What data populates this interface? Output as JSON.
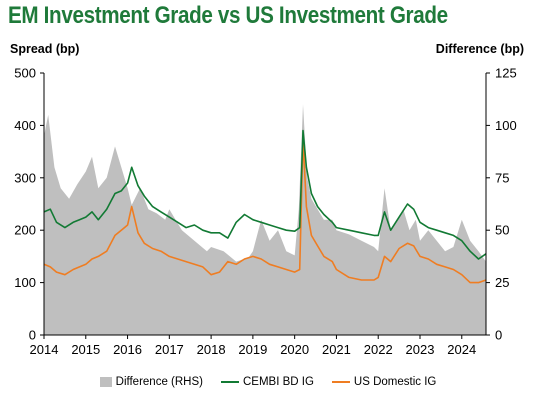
{
  "title": "EM Investment Grade vs US Investment Grade",
  "colors": {
    "title": "#1f7a3a",
    "difference": "#bfbfbf",
    "cembi": "#127a34",
    "us_domestic": "#ef7d22"
  },
  "chart_data": {
    "type": "line",
    "title": "EM Investment Grade vs US Investment Grade",
    "ylabel": "Spread (bp)",
    "ylabel_right": "Difference (bp)",
    "ylim": [
      0,
      500
    ],
    "ylim_right": [
      0,
      125
    ],
    "yticks": [
      "0",
      "100",
      "200",
      "300",
      "400",
      "500"
    ],
    "yticks_right": [
      "0",
      "25",
      "50",
      "75",
      "100",
      "125"
    ],
    "xlim": [
      2014,
      2024.58
    ],
    "xticks": [
      "2014",
      "2015",
      "2016",
      "2017",
      "2018",
      "2019",
      "2020",
      "2021",
      "2022",
      "2023",
      "2024"
    ],
    "grid": false,
    "legend_position": "bottom",
    "series": [
      {
        "name": "Difference (RHS)",
        "type": "area",
        "axis": "right",
        "x": [
          2014,
          2014.1,
          2014.25,
          2014.4,
          2014.6,
          2014.8,
          2015,
          2015.15,
          2015.3,
          2015.5,
          2015.7,
          2015.85,
          2016,
          2016.1,
          2016.3,
          2016.5,
          2016.7,
          2016.9,
          2017,
          2017.3,
          2017.6,
          2017.9,
          2018,
          2018.3,
          2018.6,
          2018.9,
          2019,
          2019.2,
          2019.4,
          2019.6,
          2019.8,
          2020,
          2020.1,
          2020.2,
          2020.3,
          2020.4,
          2020.55,
          2020.7,
          2020.9,
          2021,
          2021.3,
          2021.6,
          2021.9,
          2022,
          2022.15,
          2022.3,
          2022.45,
          2022.6,
          2022.75,
          2022.9,
          2023,
          2023.2,
          2023.4,
          2023.6,
          2023.8,
          2024,
          2024.2,
          2024.4,
          2024.58
        ],
        "values": [
          95,
          105,
          80,
          70,
          65,
          72,
          78,
          85,
          70,
          75,
          90,
          80,
          70,
          62,
          70,
          60,
          58,
          55,
          60,
          50,
          45,
          40,
          42,
          40,
          35,
          37,
          40,
          55,
          45,
          50,
          40,
          38,
          60,
          110,
          75,
          65,
          60,
          55,
          55,
          50,
          48,
          45,
          42,
          40,
          70,
          50,
          55,
          60,
          50,
          55,
          45,
          50,
          45,
          40,
          42,
          55,
          45,
          40,
          35
        ]
      },
      {
        "name": "CEMBI BD IG",
        "type": "line",
        "axis": "left",
        "x": [
          2014,
          2014.15,
          2014.3,
          2014.5,
          2014.7,
          2014.85,
          2015,
          2015.15,
          2015.3,
          2015.5,
          2015.7,
          2015.85,
          2016,
          2016.1,
          2016.25,
          2016.4,
          2016.6,
          2016.8,
          2017,
          2017.2,
          2017.4,
          2017.6,
          2017.8,
          2018,
          2018.2,
          2018.4,
          2018.6,
          2018.8,
          2019,
          2019.2,
          2019.4,
          2019.6,
          2019.8,
          2020,
          2020.12,
          2020.2,
          2020.28,
          2020.4,
          2020.55,
          2020.7,
          2020.9,
          2021,
          2021.3,
          2021.6,
          2021.9,
          2022,
          2022.15,
          2022.3,
          2022.5,
          2022.7,
          2022.85,
          2023,
          2023.2,
          2023.4,
          2023.6,
          2023.8,
          2024,
          2024.2,
          2024.4,
          2024.58
        ],
        "values": [
          235,
          240,
          215,
          205,
          215,
          220,
          225,
          235,
          220,
          240,
          270,
          275,
          290,
          320,
          285,
          265,
          245,
          235,
          225,
          215,
          205,
          210,
          200,
          195,
          195,
          185,
          215,
          230,
          220,
          215,
          210,
          205,
          200,
          198,
          205,
          390,
          320,
          270,
          245,
          230,
          215,
          205,
          200,
          195,
          190,
          190,
          235,
          200,
          225,
          250,
          240,
          215,
          205,
          200,
          195,
          190,
          180,
          160,
          145,
          155
        ]
      },
      {
        "name": "US Domestic IG",
        "type": "line",
        "axis": "left",
        "x": [
          2014,
          2014.15,
          2014.3,
          2014.5,
          2014.7,
          2014.85,
          2015,
          2015.15,
          2015.3,
          2015.5,
          2015.7,
          2015.85,
          2016,
          2016.1,
          2016.25,
          2016.4,
          2016.6,
          2016.8,
          2017,
          2017.2,
          2017.4,
          2017.6,
          2017.8,
          2018,
          2018.2,
          2018.4,
          2018.6,
          2018.8,
          2019,
          2019.2,
          2019.4,
          2019.6,
          2019.8,
          2020,
          2020.12,
          2020.2,
          2020.28,
          2020.4,
          2020.55,
          2020.7,
          2020.9,
          2021,
          2021.3,
          2021.6,
          2021.9,
          2022,
          2022.15,
          2022.3,
          2022.5,
          2022.7,
          2022.85,
          2023,
          2023.2,
          2023.4,
          2023.6,
          2023.8,
          2024,
          2024.2,
          2024.4,
          2024.58
        ],
        "values": [
          135,
          130,
          120,
          115,
          125,
          130,
          135,
          145,
          150,
          160,
          190,
          200,
          210,
          245,
          195,
          175,
          165,
          160,
          150,
          145,
          140,
          135,
          130,
          115,
          120,
          140,
          135,
          145,
          150,
          145,
          135,
          130,
          125,
          120,
          125,
          375,
          245,
          190,
          170,
          150,
          140,
          125,
          110,
          105,
          105,
          110,
          150,
          140,
          165,
          175,
          170,
          150,
          145,
          135,
          130,
          125,
          115,
          100,
          100,
          105
        ]
      }
    ]
  }
}
